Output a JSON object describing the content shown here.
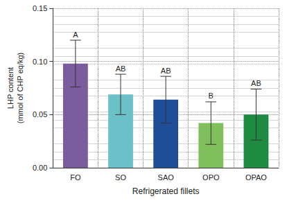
{
  "chart_data": {
    "type": "bar",
    "x_label": "Refrigerated fillets",
    "y_label": "LHP content\n(mmol of CHP eq/kg)",
    "categories": [
      "FO",
      "SO",
      "SAO",
      "OPO",
      "OPAO"
    ],
    "values": [
      0.098,
      0.069,
      0.064,
      0.042,
      0.05
    ],
    "errors": [
      0.022,
      0.019,
      0.022,
      0.02,
      0.024
    ],
    "letters": [
      "A",
      "AB",
      "AB",
      "B",
      "AB"
    ],
    "colors": [
      "#7b5c9e",
      "#6cc0c8",
      "#1f4e98",
      "#7fc05c",
      "#1f8a42"
    ],
    "ylim": [
      0,
      0.15
    ],
    "yticks": [
      {
        "value": 0,
        "label": "0.00"
      },
      {
        "value": 0.05,
        "label": "0.05"
      },
      {
        "value": 0.1,
        "label": "0.10"
      },
      {
        "value": 0.15,
        "label": "0.15"
      }
    ],
    "grid": true
  }
}
